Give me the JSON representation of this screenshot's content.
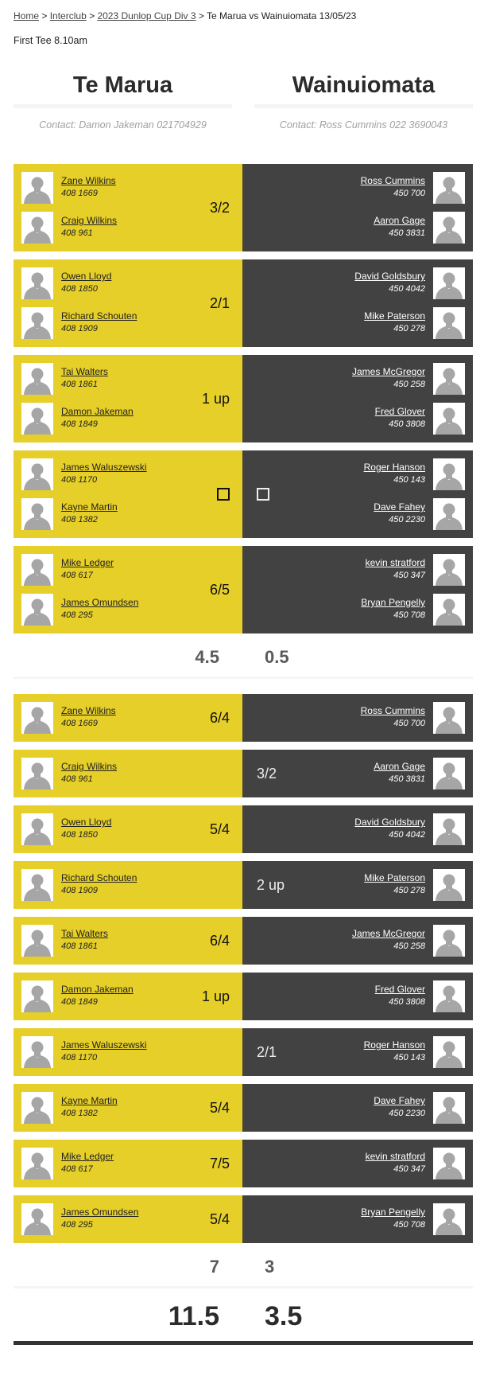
{
  "breadcrumb": {
    "links": [
      "Home",
      "Interclub",
      "2023 Dunlop Cup Div 3"
    ],
    "separator": ">",
    "current": "Te Marua vs Wainuiomata 13/05/23"
  },
  "first_tee": "First Tee 8.10am",
  "teams": {
    "home": {
      "name": "Te Marua",
      "contact": "Contact: Damon Jakeman 021704929"
    },
    "away": {
      "name": "Wainuiomata",
      "contact": "Contact: Ross Cummins 022 3690043"
    }
  },
  "colors": {
    "home": "#e6cf28",
    "away": "#424242"
  },
  "pairs": [
    {
      "home": [
        {
          "name": "Zane Wilkins",
          "num": "408 1669"
        },
        {
          "name": "Craig Wilkins",
          "num": "408 961"
        }
      ],
      "away": [
        {
          "name": "Ross Cummins",
          "num": "450 700"
        },
        {
          "name": "Aaron Gage",
          "num": "450 3831"
        }
      ],
      "winner": "home",
      "result": "3/2"
    },
    {
      "home": [
        {
          "name": "Owen Lloyd",
          "num": "408 1850"
        },
        {
          "name": "Richard Schouten",
          "num": "408 1909"
        }
      ],
      "away": [
        {
          "name": "David Goldsbury",
          "num": "450 4042"
        },
        {
          "name": "Mike Paterson",
          "num": "450 278"
        }
      ],
      "winner": "home",
      "result": "2/1"
    },
    {
      "home": [
        {
          "name": "Tai Walters",
          "num": "408 1861"
        },
        {
          "name": "Damon Jakeman",
          "num": "408 1849"
        }
      ],
      "away": [
        {
          "name": "James McGregor",
          "num": "450 258"
        },
        {
          "name": "Fred Glover",
          "num": "450 3808"
        }
      ],
      "winner": "home",
      "result": "1 up"
    },
    {
      "home": [
        {
          "name": "James Waluszewski",
          "num": "408 1170"
        },
        {
          "name": "Kayne Martin",
          "num": "408 1382"
        }
      ],
      "away": [
        {
          "name": "Roger Hanson",
          "num": "450 143"
        },
        {
          "name": "Dave Fahey",
          "num": "450 2230"
        }
      ],
      "winner": "halved",
      "result": ""
    },
    {
      "home": [
        {
          "name": "Mike Ledger",
          "num": "408 617"
        },
        {
          "name": "James Omundsen",
          "num": "408 295"
        }
      ],
      "away": [
        {
          "name": "kevin stratford",
          "num": "450 347"
        },
        {
          "name": "Bryan Pengelly",
          "num": "450 708"
        }
      ],
      "winner": "home",
      "result": "6/5"
    }
  ],
  "pairs_totals": {
    "home": "4.5",
    "away": "0.5"
  },
  "singles": [
    {
      "home": {
        "name": "Zane Wilkins",
        "num": "408 1669"
      },
      "away": {
        "name": "Ross Cummins",
        "num": "450 700"
      },
      "winner": "home",
      "result": "6/4"
    },
    {
      "home": {
        "name": "Craig Wilkins",
        "num": "408 961"
      },
      "away": {
        "name": "Aaron Gage",
        "num": "450 3831"
      },
      "winner": "away",
      "result": "3/2"
    },
    {
      "home": {
        "name": "Owen Lloyd",
        "num": "408 1850"
      },
      "away": {
        "name": "David Goldsbury",
        "num": "450 4042"
      },
      "winner": "home",
      "result": "5/4"
    },
    {
      "home": {
        "name": "Richard Schouten",
        "num": "408 1909"
      },
      "away": {
        "name": "Mike Paterson",
        "num": "450 278"
      },
      "winner": "away",
      "result": "2 up"
    },
    {
      "home": {
        "name": "Tai Walters",
        "num": "408 1861"
      },
      "away": {
        "name": "James McGregor",
        "num": "450 258"
      },
      "winner": "home",
      "result": "6/4"
    },
    {
      "home": {
        "name": "Damon Jakeman",
        "num": "408 1849"
      },
      "away": {
        "name": "Fred Glover",
        "num": "450 3808"
      },
      "winner": "home",
      "result": "1 up"
    },
    {
      "home": {
        "name": "James Waluszewski",
        "num": "408 1170"
      },
      "away": {
        "name": "Roger Hanson",
        "num": "450 143"
      },
      "winner": "away",
      "result": "2/1"
    },
    {
      "home": {
        "name": "Kayne Martin",
        "num": "408 1382"
      },
      "away": {
        "name": "Dave Fahey",
        "num": "450 2230"
      },
      "winner": "home",
      "result": "5/4"
    },
    {
      "home": {
        "name": "Mike Ledger",
        "num": "408 617"
      },
      "away": {
        "name": "kevin stratford",
        "num": "450 347"
      },
      "winner": "home",
      "result": "7/5"
    },
    {
      "home": {
        "name": "James Omundsen",
        "num": "408 295"
      },
      "away": {
        "name": "Bryan Pengelly",
        "num": "450 708"
      },
      "winner": "home",
      "result": "5/4"
    }
  ],
  "singles_totals": {
    "home": "7",
    "away": "3"
  },
  "grand_totals": {
    "home": "11.5",
    "away": "3.5"
  }
}
